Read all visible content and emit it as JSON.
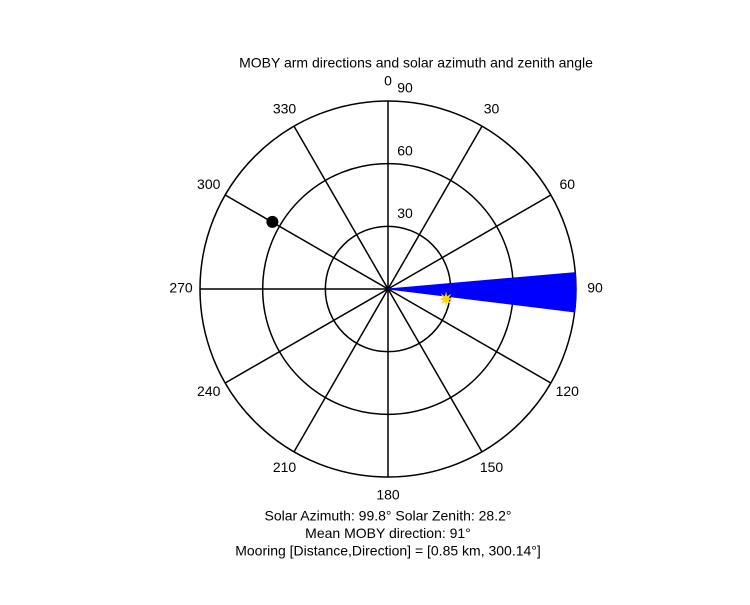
{
  "chart_data": {
    "type": "polar",
    "title": "MOBY arm directions and solar azimuth and zenith angle",
    "rlim": [
      0,
      90
    ],
    "radial_ticks": [
      30,
      60,
      90
    ],
    "azimuth_ticks": [
      0,
      30,
      60,
      90,
      120,
      150,
      180,
      210,
      240,
      270,
      300,
      330
    ],
    "arm_directions": {
      "from": 85,
      "to": 97,
      "color": "#0000ff"
    },
    "sun": {
      "azimuth": 99.8,
      "zenith": 28.2,
      "color": "#ffd700"
    },
    "mooring": {
      "direction": 300.14,
      "radius": 64,
      "color": "#000000"
    },
    "annotations": [
      "Solar Azimuth: 99.8°   Solar Zenith: 28.2°",
      "Mean MOBY direction: 91°",
      "Mooring [Distance,Direction] = [0.85 km, 300.14°]"
    ]
  }
}
